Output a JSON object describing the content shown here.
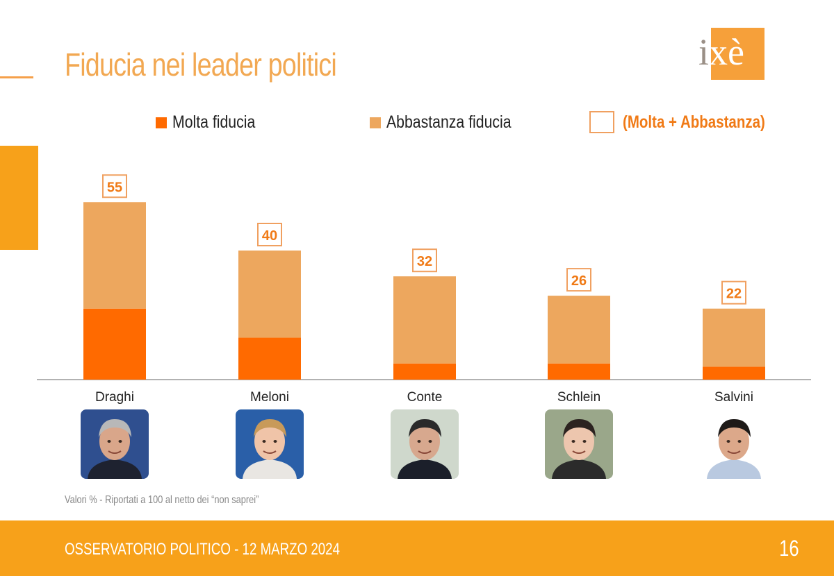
{
  "title": "Fiducia nei leader politici",
  "logo_text": "ixè",
  "legend": {
    "molta": "Molta fiducia",
    "abbastanza": "Abbastanza fiducia",
    "total": "(Molta + Abbastanza)"
  },
  "colors": {
    "molta": "#ff6a00",
    "abbastanza": "#eda75e",
    "accent": "#f7a11a",
    "title": "#f2a852"
  },
  "chart_data": {
    "type": "bar",
    "stacked": true,
    "categories": [
      "Draghi",
      "Meloni",
      "Conte",
      "Schlein",
      "Salvini"
    ],
    "series": [
      {
        "name": "Molta fiducia",
        "values": [
          22,
          13,
          5,
          5,
          4
        ]
      },
      {
        "name": "Abbastanza fiducia",
        "values": [
          33,
          27,
          27,
          21,
          18
        ]
      }
    ],
    "totals": [
      55,
      40,
      32,
      26,
      22
    ],
    "ylim": [
      0,
      60
    ],
    "legend_position": "top"
  },
  "photos": [
    {
      "name": "Draghi",
      "bg": "#2f4f8f",
      "skin": "#d9a68a",
      "hair": "#b8b8b8",
      "suit": "#1e2230"
    },
    {
      "name": "Meloni",
      "bg": "#2a5fa8",
      "skin": "#f0c4a8",
      "hair": "#c89a5a",
      "suit": "#e9e6e2"
    },
    {
      "name": "Conte",
      "bg": "#cfd8cc",
      "skin": "#d7a88e",
      "hair": "#2a2a2a",
      "suit": "#1b1f2a"
    },
    {
      "name": "Schlein",
      "bg": "#9aa78a",
      "skin": "#edc6ae",
      "hair": "#2c2320",
      "suit": "#2b2b2b"
    },
    {
      "name": "Salvini",
      "bg": "#ffffff",
      "skin": "#dca88a",
      "hair": "#1e1a18",
      "suit": "#b9c9e0"
    }
  ],
  "note": "Valori % - Riportati a 100 al netto dei “non saprei”",
  "footer": {
    "text": "OSSERVATORIO POLITICO - 12 MARZO 2024",
    "page": "16"
  }
}
